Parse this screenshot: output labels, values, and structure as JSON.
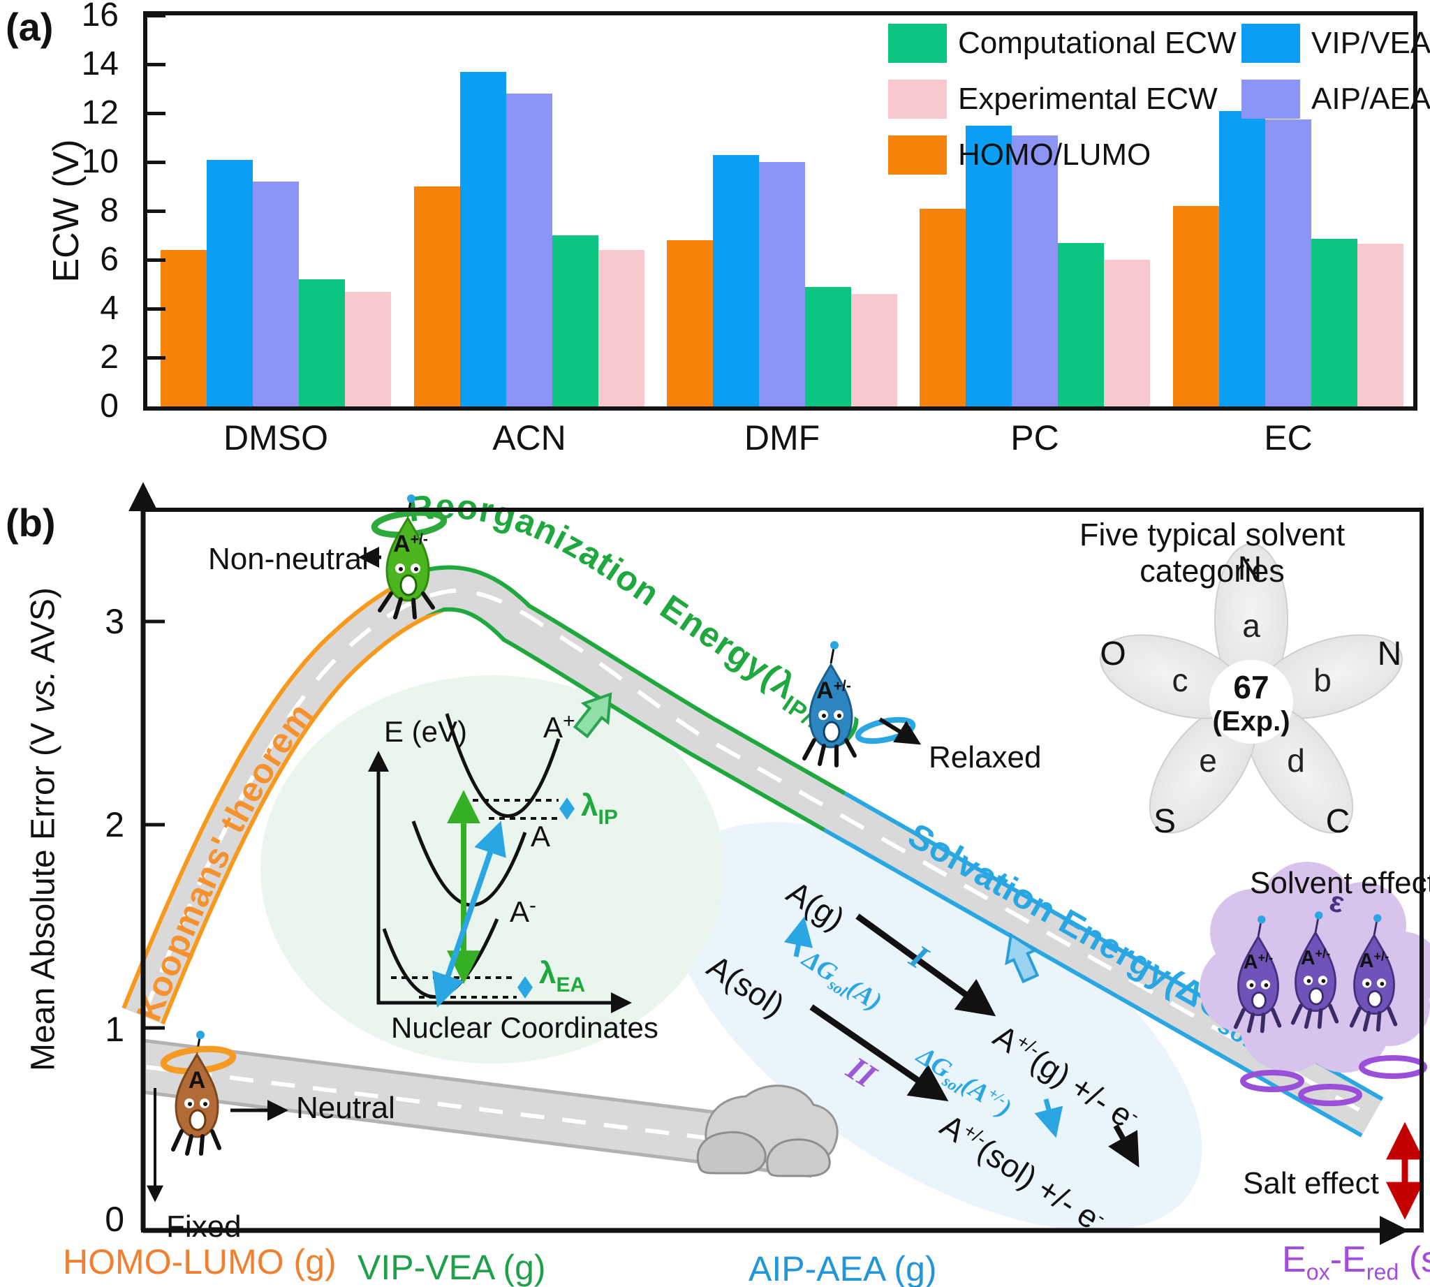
{
  "panel_a": {
    "label": "(a)"
  },
  "chart_data": {
    "type": "bar",
    "title": "",
    "xlabel": "",
    "ylabel": "ECW (V)",
    "ylim": [
      0,
      16
    ],
    "ytick_step": 2,
    "grid": false,
    "legend_position": "top-right",
    "categories": [
      "DMSO",
      "ACN",
      "DMF",
      "PC",
      "EC"
    ],
    "series": [
      {
        "name": "HOMO/LUMO",
        "color": "#F8820A",
        "values": [
          6.4,
          9.0,
          6.8,
          8.1,
          8.2
        ]
      },
      {
        "name": "VIP/VEA",
        "color": "#0A9FF5",
        "values": [
          10.1,
          13.7,
          10.3,
          11.5,
          12.1
        ]
      },
      {
        "name": "AIP/AEA",
        "color": "#8C95F5",
        "values": [
          9.2,
          12.8,
          10.0,
          11.1,
          11.75
        ]
      },
      {
        "name": "Computational ECW",
        "color": "#0BC581",
        "values": [
          5.2,
          7.0,
          4.9,
          6.7,
          6.85
        ]
      },
      {
        "name": "Experimental ECW",
        "color": "#F9C8CE",
        "values": [
          4.7,
          6.4,
          4.6,
          6.0,
          6.65
        ]
      }
    ],
    "legend_cols": [
      [
        3,
        4,
        0
      ],
      [
        1,
        2
      ]
    ]
  },
  "panel_b": {
    "label": "(b)",
    "ylabel_parts": [
      "Mean Absolute Error (V ",
      "vs.",
      " AVS)"
    ],
    "yticks": [
      "3",
      "2",
      "1",
      "0"
    ],
    "xlabels": {
      "homo": "HOMO-LUMO (g)",
      "vip": "VIP-VEA (g)",
      "aip": "AIP-AEA (g)",
      "eox_parts": [
        "E",
        "ox",
        "-E",
        "red",
        " (s)"
      ]
    },
    "roads": {
      "koopmans": "Koopmans' theorem",
      "reorg": [
        "Reorganization Energy(λ",
        "IP/EA",
        ")"
      ],
      "solv": [
        "Solvation Energy(ΔG",
        "sol",
        ")"
      ]
    },
    "annotations": {
      "non_neutral": "Non-neutral",
      "relaxed": "Relaxed",
      "neutral": "Neutral",
      "fixed": "Fixed",
      "solvent_effect": "Solvent effect",
      "salt_effect": "Salt effect",
      "epsilon": "ε"
    },
    "characters": {
      "neutral_label": "A",
      "ion_label": "A",
      "ion_sup": "+/-"
    },
    "inset": {
      "ylabel": "E (eV)",
      "xlabel": "Nuclear Coordinates",
      "a_plus": [
        "A",
        "+"
      ],
      "a": "A",
      "a_minus": [
        "A",
        "-"
      ],
      "lambda_ip": [
        "λ",
        "IP"
      ],
      "lambda_ea": [
        "λ",
        "EA"
      ]
    },
    "scheme": {
      "a_g": "A(g)",
      "a_sol": "A(sol)",
      "prod_g": [
        "A",
        "+/-",
        "(g) +/- e",
        "-"
      ],
      "prod_sol": [
        "A",
        "+/-",
        "(sol) +/- e",
        "-"
      ],
      "step1": "I",
      "step2": "II",
      "dg_a": [
        "ΔG",
        "sol",
        "(A)"
      ],
      "dg_ion": [
        "ΔG",
        "sol",
        "(A",
        "+/-",
        ")"
      ]
    },
    "flower": {
      "title": "Five typical solvent categories",
      "center_line1": "67",
      "center_line2": "(Exp.)",
      "petals": [
        {
          "letter": "a",
          "outer": "N"
        },
        {
          "letter": "b",
          "outer": "N"
        },
        {
          "letter": "d",
          "outer": "C"
        },
        {
          "letter": "e",
          "outer": "S"
        },
        {
          "letter": "c",
          "outer": "O"
        }
      ]
    }
  }
}
